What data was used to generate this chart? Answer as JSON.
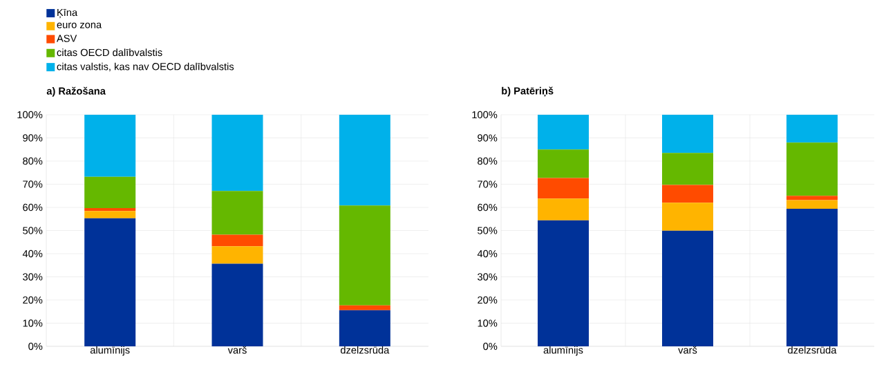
{
  "chart_data": [
    {
      "type": "bar",
      "stacked": true,
      "title": "a) Ražošana",
      "categories": [
        "alumīnijs",
        "varš",
        "dzelzsrūda"
      ],
      "ylim": [
        0,
        100
      ],
      "yticks": [
        {
          "value": 0,
          "label": "0%"
        },
        {
          "value": 10,
          "label": "10%"
        },
        {
          "value": 20,
          "label": "20%"
        },
        {
          "value": 30,
          "label": "30%"
        },
        {
          "value": 40,
          "label": "40%"
        },
        {
          "value": 50,
          "label": "50%"
        },
        {
          "value": 60,
          "label": "60%"
        },
        {
          "value": 70,
          "label": "70%"
        },
        {
          "value": 80,
          "label": "80%"
        },
        {
          "value": 90,
          "label": "90%"
        },
        {
          "value": 100,
          "label": "100%"
        }
      ],
      "grid": true,
      "legend": "top left",
      "series": [
        {
          "name": "Ķīna",
          "color": "#003299",
          "values": [
            55.3,
            35.7,
            15.6
          ]
        },
        {
          "name": "euro zona",
          "color": "#ffb400",
          "values": [
            3.1,
            7.5,
            0
          ]
        },
        {
          "name": "ASV",
          "color": "#ff4b00",
          "values": [
            1.3,
            5.0,
            2.1
          ]
        },
        {
          "name": "citas OECD dalībvalstis",
          "color": "#65b800",
          "values": [
            13.5,
            18.9,
            43.1
          ]
        },
        {
          "name": "citas valstis, kas nav OECD dalībvalstis",
          "color": "#00b1ea",
          "values": [
            26.8,
            32.9,
            39.2
          ]
        }
      ]
    },
    {
      "type": "bar",
      "stacked": true,
      "title": "b) Patēriņš",
      "categories": [
        "alumīnijs",
        "varš",
        "dzelzsrūda"
      ],
      "ylim": [
        0,
        100
      ],
      "yticks": [
        {
          "value": 0,
          "label": "0%"
        },
        {
          "value": 10,
          "label": "10%"
        },
        {
          "value": 20,
          "label": "20%"
        },
        {
          "value": 30,
          "label": "30%"
        },
        {
          "value": 40,
          "label": "40%"
        },
        {
          "value": 50,
          "label": "50%"
        },
        {
          "value": 60,
          "label": "60%"
        },
        {
          "value": 70,
          "label": "70%"
        },
        {
          "value": 80,
          "label": "80%"
        },
        {
          "value": 90,
          "label": "90%"
        },
        {
          "value": 100,
          "label": "100%"
        }
      ],
      "grid": true,
      "series": [
        {
          "color": "#003299",
          "values": [
            54.4,
            49.9,
            59.4
          ]
        },
        {
          "color": "#ffb400",
          "values": [
            9.4,
            12.1,
            3.7
          ]
        },
        {
          "color": "#ff4b00",
          "values": [
            8.9,
            7.7,
            1.9
          ]
        },
        {
          "color": "#65b800",
          "values": [
            12.3,
            13.8,
            23.0
          ]
        },
        {
          "color": "#00b1ea",
          "values": [
            15.0,
            16.5,
            12.0
          ]
        }
      ]
    }
  ]
}
